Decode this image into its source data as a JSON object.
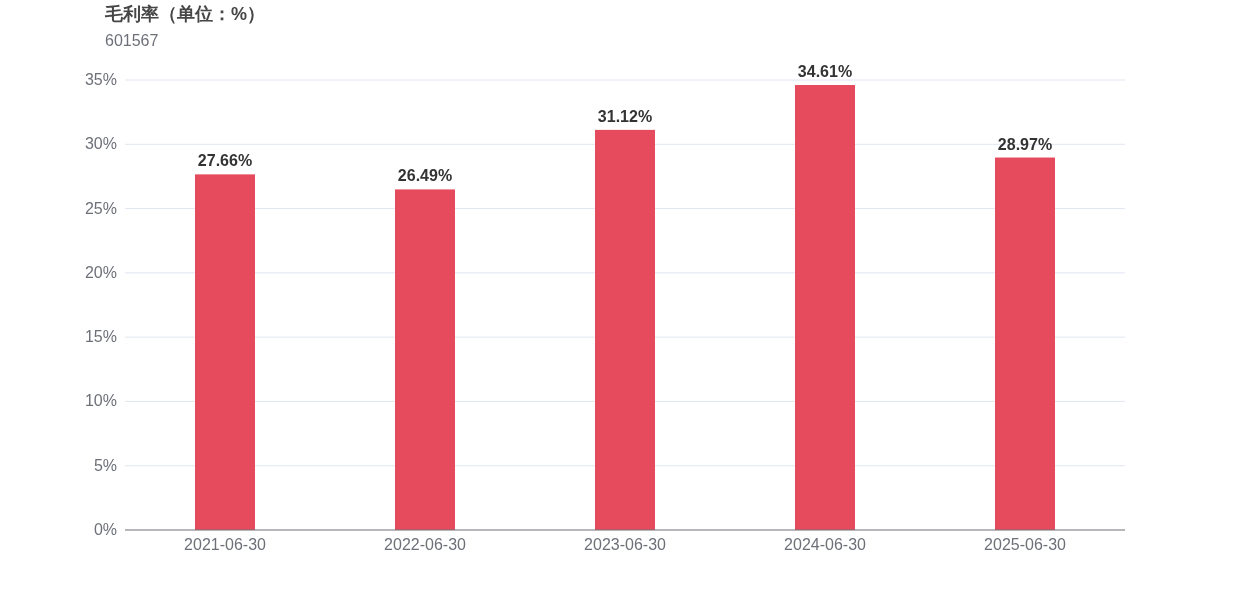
{
  "chart_data": {
    "type": "bar",
    "title": "毛利率（单位：%）",
    "subtitle": "601567",
    "categories": [
      "2021-06-30",
      "2022-06-30",
      "2023-06-30",
      "2024-06-30",
      "2025-06-30"
    ],
    "values": [
      27.66,
      26.49,
      31.12,
      34.61,
      28.97
    ],
    "value_labels": [
      "27.66%",
      "26.49%",
      "31.12%",
      "34.61%",
      "28.97%"
    ],
    "color": "#e54b5d",
    "ylim": [
      0,
      35
    ],
    "yticks": [
      {
        "value": 0,
        "label": "0%"
      },
      {
        "value": 5,
        "label": "5%"
      },
      {
        "value": 10,
        "label": "10%"
      },
      {
        "value": 15,
        "label": "15%"
      },
      {
        "value": 20,
        "label": "20%"
      },
      {
        "value": 25,
        "label": "25%"
      },
      {
        "value": 30,
        "label": "30%"
      },
      {
        "value": 35,
        "label": "35%"
      }
    ],
    "grid": "y"
  }
}
